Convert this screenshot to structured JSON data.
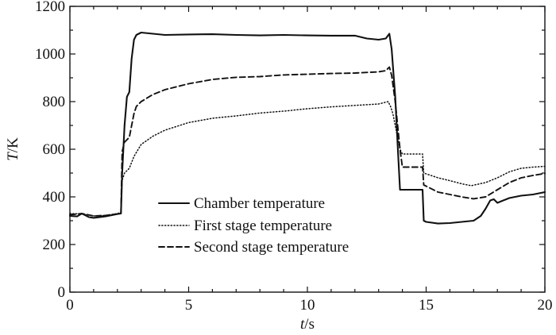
{
  "chart_data": {
    "type": "line",
    "xlabel": {
      "var": "t",
      "unit": "/s"
    },
    "ylabel": {
      "var": "T",
      "unit": "/K"
    },
    "xlim": [
      0,
      20
    ],
    "ylim": [
      0,
      1200
    ],
    "xticks": [
      0,
      5,
      10,
      15,
      20
    ],
    "yticks": [
      0,
      200,
      400,
      600,
      800,
      1000,
      1200
    ],
    "grid": false,
    "legend_position": "bottom-left",
    "series": [
      {
        "name": "Chamber temperature",
        "style": "solid",
        "x": [
          0,
          0.3,
          0.5,
          0.8,
          1.0,
          1.5,
          2.0,
          2.15,
          2.2,
          2.3,
          2.4,
          2.5,
          2.6,
          2.7,
          2.8,
          3.0,
          3.5,
          4.0,
          5.0,
          6.0,
          7.0,
          8.0,
          9.0,
          10.0,
          11.0,
          12.0,
          12.5,
          13.0,
          13.3,
          13.45,
          13.55,
          13.7,
          13.8,
          13.9,
          14.0,
          14.5,
          14.85,
          14.9,
          15.0,
          15.5,
          16.0,
          16.5,
          17.0,
          17.3,
          17.5,
          17.7,
          17.85,
          18.0,
          18.5,
          19.0,
          19.5,
          20.0
        ],
        "y": [
          320,
          318,
          330,
          315,
          312,
          318,
          328,
          330,
          500,
          700,
          820,
          840,
          980,
          1060,
          1080,
          1090,
          1085,
          1080,
          1082,
          1083,
          1080,
          1078,
          1080,
          1078,
          1077,
          1077,
          1065,
          1060,
          1065,
          1085,
          1020,
          820,
          620,
          430,
          430,
          430,
          430,
          300,
          295,
          288,
          290,
          295,
          300,
          320,
          350,
          385,
          390,
          375,
          395,
          405,
          410,
          420
        ]
      },
      {
        "name": "First stage temperature",
        "style": "dotted",
        "x": [
          0,
          0.5,
          1.0,
          1.5,
          2.0,
          2.15,
          2.2,
          2.3,
          2.5,
          2.7,
          3.0,
          3.5,
          4.0,
          5.0,
          6.0,
          7.0,
          8.0,
          9.0,
          10.0,
          11.0,
          12.0,
          13.0,
          13.4,
          13.5,
          13.6,
          13.7,
          13.8,
          13.9,
          14.0,
          14.5,
          14.85,
          14.9,
          15.5,
          16.0,
          16.5,
          16.9,
          17.5,
          18.0,
          18.5,
          19.0,
          19.5,
          20.0
        ],
        "y": [
          330,
          328,
          320,
          322,
          330,
          335,
          470,
          500,
          520,
          570,
          620,
          655,
          680,
          712,
          730,
          740,
          752,
          760,
          770,
          778,
          784,
          790,
          800,
          780,
          750,
          700,
          650,
          600,
          580,
          580,
          580,
          500,
          480,
          468,
          455,
          447,
          460,
          480,
          505,
          520,
          525,
          528
        ]
      },
      {
        "name": "Second stage temperature",
        "style": "dashed",
        "x": [
          0,
          0.5,
          1.0,
          1.5,
          2.0,
          2.15,
          2.2,
          2.3,
          2.5,
          2.7,
          2.8,
          3.0,
          3.5,
          4.0,
          5.0,
          6.0,
          7.0,
          8.0,
          9.0,
          10.0,
          11.0,
          12.0,
          13.0,
          13.3,
          13.45,
          13.55,
          13.7,
          13.8,
          13.9,
          14.0,
          14.5,
          14.85,
          14.9,
          15.5,
          16.0,
          16.5,
          17.0,
          17.5,
          18.0,
          18.5,
          19.0,
          19.5,
          20.0
        ],
        "y": [
          325,
          330,
          320,
          322,
          328,
          332,
          590,
          630,
          650,
          750,
          780,
          800,
          830,
          850,
          875,
          893,
          902,
          905,
          912,
          915,
          918,
          920,
          925,
          930,
          945,
          910,
          800,
          700,
          600,
          525,
          525,
          525,
          450,
          420,
          410,
          400,
          392,
          400,
          430,
          460,
          480,
          490,
          498
        ]
      }
    ]
  }
}
